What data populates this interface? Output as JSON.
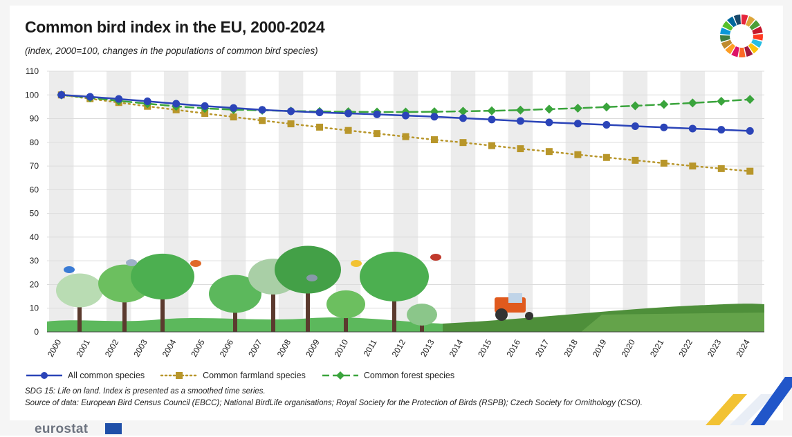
{
  "title": "Common bird index in the EU, 2000-2024",
  "subtitle": "(index, 2000=100, changes in the populations of common bird species)",
  "notes": {
    "line1": "SDG 15: Life on land. Index is presented as a smoothed time series.",
    "line2": "Source of data: European Bird Census Council (EBCC); National BirdLife organisations; Royal Society for the Protection of Birds (RSPB); Czech Society for Ornithology (CSO)."
  },
  "brand": {
    "logo_text": "eurostat"
  },
  "icons": {
    "sdg_wheel": "sdg-wheel-icon",
    "eu_flag": "eu-flag-icon"
  },
  "colors": {
    "all": "#2b44b8",
    "farmland": "#b8962a",
    "forest": "#3aa43c",
    "grid_band": "#ececec"
  },
  "chart_data": {
    "type": "line",
    "title": "Common bird index in the EU, 2000-2024",
    "subtitle": "(index, 2000=100, changes in the populations of common bird species)",
    "xlabel": "",
    "ylabel": "",
    "ylim": [
      0,
      110
    ],
    "yticks": [
      0,
      10,
      20,
      30,
      40,
      50,
      60,
      70,
      80,
      90,
      100,
      110
    ],
    "grid": true,
    "legend_position": "bottom-left",
    "categories": [
      "2000",
      "2001",
      "2002",
      "2003",
      "2004",
      "2005",
      "2006",
      "2007",
      "2008",
      "2009",
      "2010",
      "2011",
      "2012",
      "2013",
      "2014",
      "2015",
      "2016",
      "2017",
      "2018",
      "2019",
      "2020",
      "2021",
      "2022",
      "2023",
      "2024"
    ],
    "series": [
      {
        "name": "All common species",
        "style": "solid-circle",
        "color": "#2b44b8",
        "values": [
          100,
          99.2,
          98.3,
          97.3,
          96.3,
          95.3,
          94.5,
          93.7,
          93.1,
          92.6,
          92.2,
          91.8,
          91.3,
          90.8,
          90.2,
          89.6,
          89.0,
          88.4,
          87.9,
          87.4,
          86.8,
          86.3,
          85.8,
          85.3,
          84.8
        ]
      },
      {
        "name": "Common farmland species",
        "style": "dotted-square",
        "color": "#b8962a",
        "values": [
          100,
          98.4,
          96.8,
          95.2,
          93.7,
          92.2,
          90.7,
          89.2,
          87.8,
          86.4,
          85.0,
          83.7,
          82.4,
          81.1,
          79.9,
          78.6,
          77.3,
          76.1,
          74.8,
          73.6,
          72.4,
          71.2,
          70.0,
          68.9,
          67.8
        ]
      },
      {
        "name": "Common forest species",
        "style": "dashed-diamond",
        "color": "#3aa43c",
        "values": [
          100,
          98.8,
          97.5,
          96.3,
          95.2,
          94.3,
          93.8,
          93.5,
          93.2,
          93.0,
          92.9,
          92.8,
          92.8,
          92.9,
          93.1,
          93.3,
          93.6,
          94.0,
          94.4,
          94.9,
          95.4,
          96.0,
          96.6,
          97.3,
          98.1
        ]
      }
    ]
  }
}
